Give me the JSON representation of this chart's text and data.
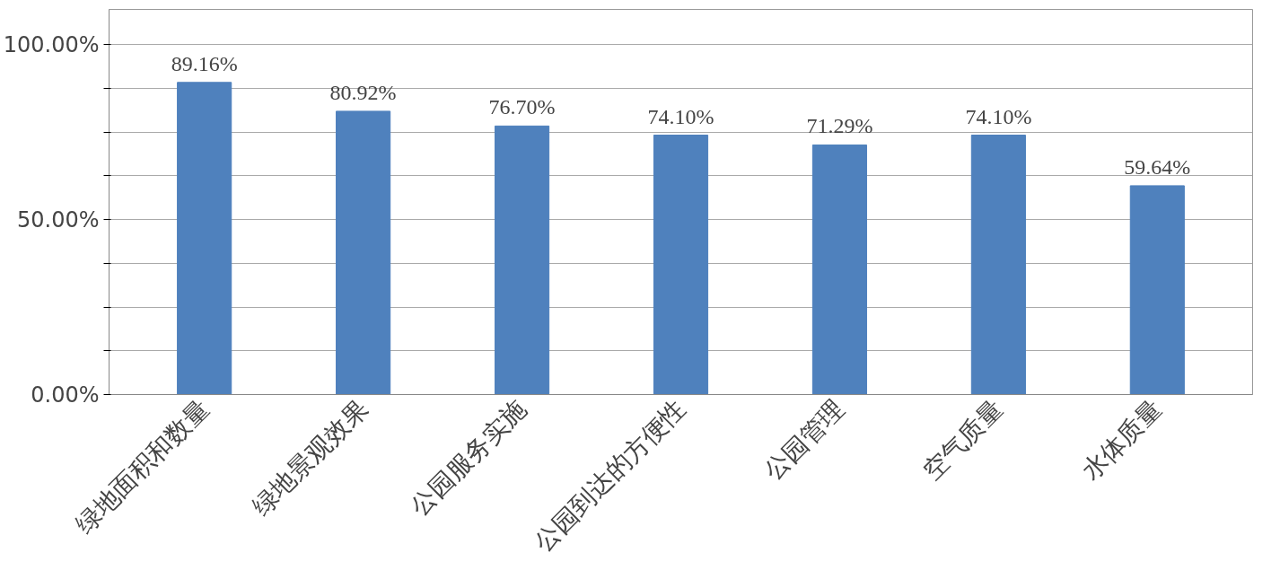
{
  "chart_data": {
    "type": "bar",
    "categories": [
      "绿地面积和数量",
      "绿地景观效果",
      "公园服务实施",
      "公园到达的方便性",
      "公园管理",
      "空气质量",
      "水体质量"
    ],
    "values": [
      89.16,
      80.92,
      76.7,
      74.1,
      71.29,
      74.1,
      59.64
    ],
    "value_labels": [
      "89.16%",
      "80.92%",
      "76.70%",
      "74.10%",
      "71.29%",
      "74.10%",
      "59.64%"
    ],
    "color": "#4f81bd",
    "ylim": [
      0,
      110
    ],
    "yticks": [
      {
        "value": 0,
        "label": "0.00%"
      },
      {
        "value": 12.5,
        "label": null
      },
      {
        "value": 25,
        "label": null
      },
      {
        "value": 37.5,
        "label": null
      },
      {
        "value": 50,
        "label": "50.00%"
      },
      {
        "value": 62.5,
        "label": null
      },
      {
        "value": 75,
        "label": null
      },
      {
        "value": 87.5,
        "label": null
      },
      {
        "value": 100,
        "label": "100.00%"
      }
    ],
    "grid": "y"
  }
}
